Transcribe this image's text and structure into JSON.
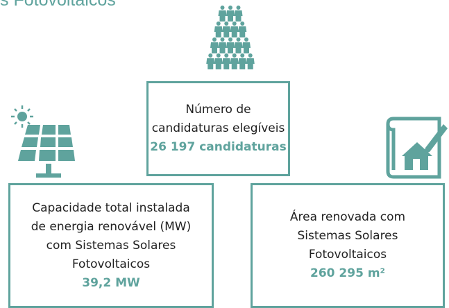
{
  "title": "s Fotovoltaicos",
  "cards": [
    {
      "lines": [
        "Número de",
        "candidaturas elegíveis"
      ],
      "value": "26 197 candidaturas"
    },
    {
      "lines": [
        "Capacidade total instalada",
        "de energia renovável (MW)",
        "com Sistemas Solares",
        "Fotovoltaicos"
      ],
      "value": "39,2 MW"
    },
    {
      "lines": [
        "Área renovada com",
        "Sistemas Solares",
        "Fotovoltaicos"
      ],
      "value": "260 295 m²"
    }
  ]
}
